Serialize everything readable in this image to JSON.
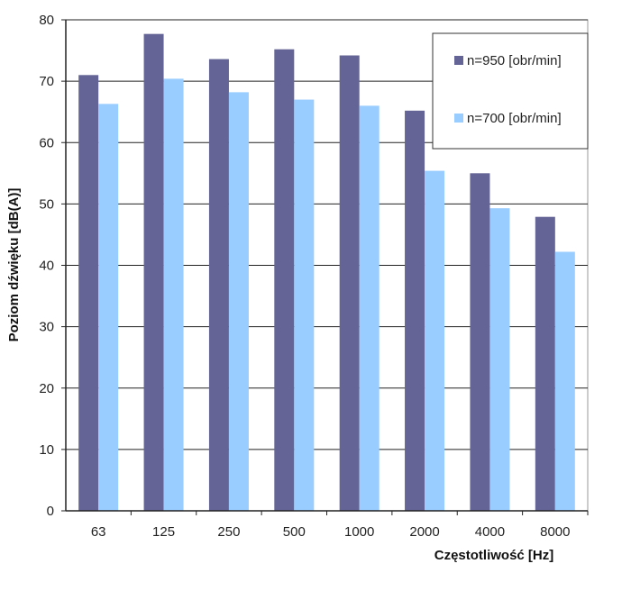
{
  "chart_data": {
    "type": "bar",
    "title": "",
    "xlabel": "Częstotliwość [Hz]",
    "ylabel": "Poziom dźwięku [dB(A)]",
    "categories": [
      "63",
      "125",
      "250",
      "500",
      "1000",
      "2000",
      "4000",
      "8000"
    ],
    "ylim": [
      0,
      80
    ],
    "yticks": [
      0,
      10,
      20,
      30,
      40,
      50,
      60,
      70,
      80
    ],
    "grid": true,
    "legend_position": "top-right",
    "series": [
      {
        "name": "n=950 [obr/min]",
        "color": "#646496",
        "values": [
          71.0,
          77.7,
          73.6,
          75.2,
          74.2,
          65.2,
          55.0,
          47.9
        ]
      },
      {
        "name": "n=700 [obr/min]",
        "color": "#99ccff",
        "values": [
          66.3,
          70.4,
          68.2,
          67.0,
          66.0,
          55.4,
          49.3,
          42.2
        ]
      }
    ]
  }
}
